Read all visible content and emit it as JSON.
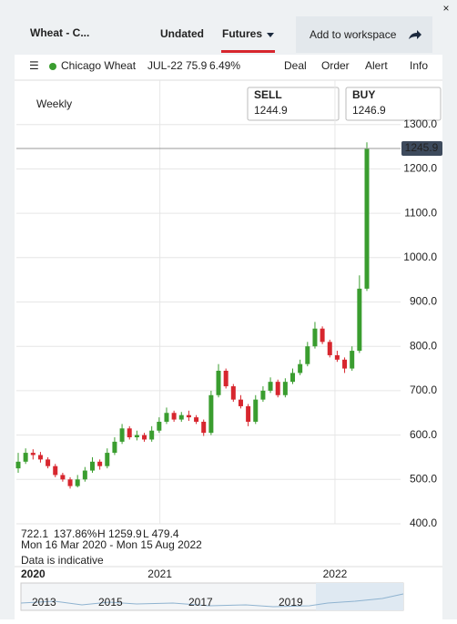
{
  "header": {
    "title": "Wheat - C...",
    "tabs": [
      "Undated",
      "Futures"
    ],
    "button": "Add to workspace"
  },
  "instrument": {
    "name": "Chicago Wheat",
    "contract": "JUL-22",
    "change": "75.9",
    "change_pct": "6.49%",
    "menu": [
      "Deal",
      "Order",
      "Alert",
      "Info"
    ]
  },
  "quote": {
    "sell_label": "SELL",
    "sell": "1244.9",
    "buy_label": "BUY",
    "buy": "1246.9"
  },
  "stats": {
    "last": "722.1",
    "pct": "137.86%",
    "high": "H 1259.9",
    "low": "L 479.4",
    "range": "Mon 16 Mar 2020 - Mon 15 Aug 2022",
    "note": "Data is indicative"
  },
  "navigator": {
    "labels": [
      "2013",
      "2015",
      "2017",
      "2019"
    ]
  },
  "chart_data": {
    "type": "candlestick",
    "subtitle": "Weekly",
    "open": [
      525,
      540,
      560,
      555,
      545,
      530,
      510,
      500,
      485,
      500,
      520,
      540,
      530,
      560,
      585,
      615,
      595,
      600,
      590,
      610,
      630,
      650,
      635,
      645,
      640,
      630,
      605,
      690,
      745,
      710,
      680,
      665,
      630,
      680,
      700,
      720,
      690,
      720,
      740,
      760,
      800,
      840,
      810,
      780,
      770,
      750,
      790,
      930
    ],
    "high": [
      560,
      570,
      568,
      562,
      550,
      535,
      515,
      505,
      510,
      528,
      550,
      545,
      570,
      595,
      625,
      620,
      610,
      605,
      620,
      640,
      662,
      655,
      652,
      655,
      645,
      635,
      700,
      760,
      750,
      715,
      690,
      670,
      690,
      710,
      730,
      725,
      728,
      750,
      770,
      810,
      855,
      845,
      815,
      790,
      775,
      800,
      960,
      1259.9
    ],
    "low": [
      515,
      535,
      545,
      538,
      525,
      505,
      495,
      479.4,
      482,
      495,
      515,
      522,
      525,
      555,
      580,
      590,
      588,
      585,
      585,
      605,
      625,
      630,
      630,
      632,
      625,
      598,
      600,
      685,
      705,
      675,
      660,
      620,
      625,
      675,
      695,
      685,
      685,
      715,
      735,
      755,
      795,
      805,
      775,
      765,
      740,
      745,
      785,
      925
    ],
    "close": [
      540,
      560,
      555,
      545,
      530,
      510,
      500,
      485,
      500,
      520,
      540,
      530,
      560,
      585,
      615,
      595,
      600,
      590,
      610,
      630,
      650,
      635,
      645,
      640,
      630,
      605,
      690,
      745,
      710,
      680,
      665,
      630,
      680,
      700,
      720,
      690,
      720,
      740,
      760,
      800,
      840,
      810,
      780,
      770,
      750,
      790,
      930,
      1245
    ],
    "up_color": "#3a9d2f",
    "down_color": "#d7262e",
    "xlim": [
      0,
      47
    ],
    "xticks": [
      {
        "value": 0,
        "label": "2020"
      },
      {
        "value": 19.1,
        "label": "2021"
      },
      {
        "value": 42.7,
        "label": "2022"
      }
    ],
    "ylim": [
      400,
      1400
    ],
    "yticks": [
      {
        "value": 400,
        "label": "400.0"
      },
      {
        "value": 500,
        "label": "500.0"
      },
      {
        "value": 600,
        "label": "600.0"
      },
      {
        "value": 700,
        "label": "700.0"
      },
      {
        "value": 800,
        "label": "800.0"
      },
      {
        "value": 900,
        "label": "900.0"
      },
      {
        "value": 1000,
        "label": "1000.0"
      },
      {
        "value": 1100,
        "label": "1100.0"
      },
      {
        "value": 1200,
        "label": "1200.0"
      },
      {
        "value": 1300,
        "label": "1300.0"
      }
    ],
    "last_price": {
      "value": 1245.9,
      "label": "1245.9"
    },
    "grid": true
  }
}
